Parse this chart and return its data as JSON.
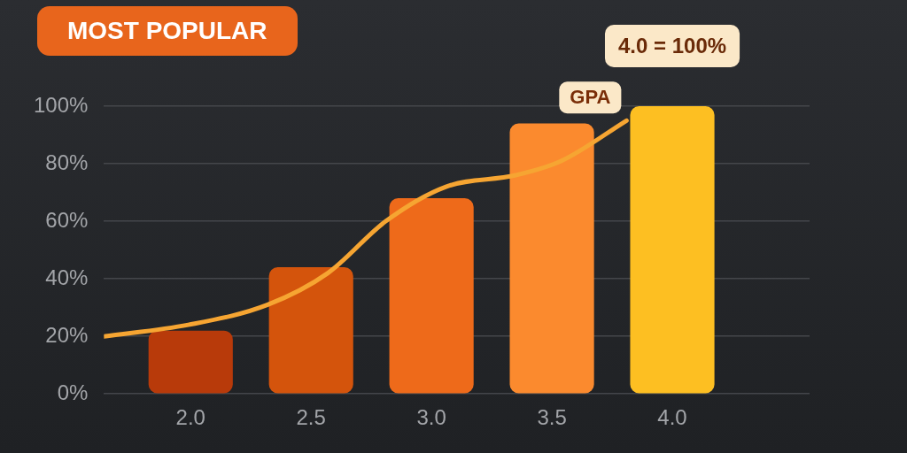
{
  "chart_data": {
    "type": "bar",
    "title": "MOST POPULAR",
    "annotations": [
      {
        "text": "4.0 = 100%",
        "x": 4.0,
        "y": 100
      }
    ],
    "xlim": [
      1.64,
      4.57
    ],
    "xticks": [
      {
        "value": 2.0,
        "label": "2.0"
      },
      {
        "value": 2.5,
        "label": "2.5"
      },
      {
        "value": 3.0,
        "label": "3.0"
      },
      {
        "value": 3.5,
        "label": "3.5"
      },
      {
        "value": 4.0,
        "label": "4.0"
      }
    ],
    "ylim": [
      0,
      100
    ],
    "yticks": [
      {
        "value": 0,
        "label": "0%"
      },
      {
        "value": 20,
        "label": "20%"
      },
      {
        "value": 40,
        "label": "40%"
      },
      {
        "value": 60,
        "label": "60%"
      },
      {
        "value": 80,
        "label": "80%"
      },
      {
        "value": 100,
        "label": "100%"
      }
    ],
    "grid": "y",
    "legend": false,
    "series": [
      {
        "x": [
          2.0,
          2.5,
          3.0,
          3.5,
          4.0
        ],
        "values": [
          22,
          44,
          68,
          94,
          100
        ],
        "colors": [
          "#b83a0a",
          "#d4540c",
          "#ee6a1a",
          "#fb8a2e",
          "#fdbf22"
        ]
      },
      {
        "type": "line",
        "name": "GPA",
        "color": "#f6a532",
        "marker": "none",
        "x": [
          1.64,
          1.99,
          2.32,
          2.57,
          2.81,
          3.06,
          3.35,
          3.54,
          3.81
        ],
        "values": [
          20,
          24,
          31,
          42,
          60,
          72,
          76,
          81,
          95
        ]
      }
    ]
  }
}
